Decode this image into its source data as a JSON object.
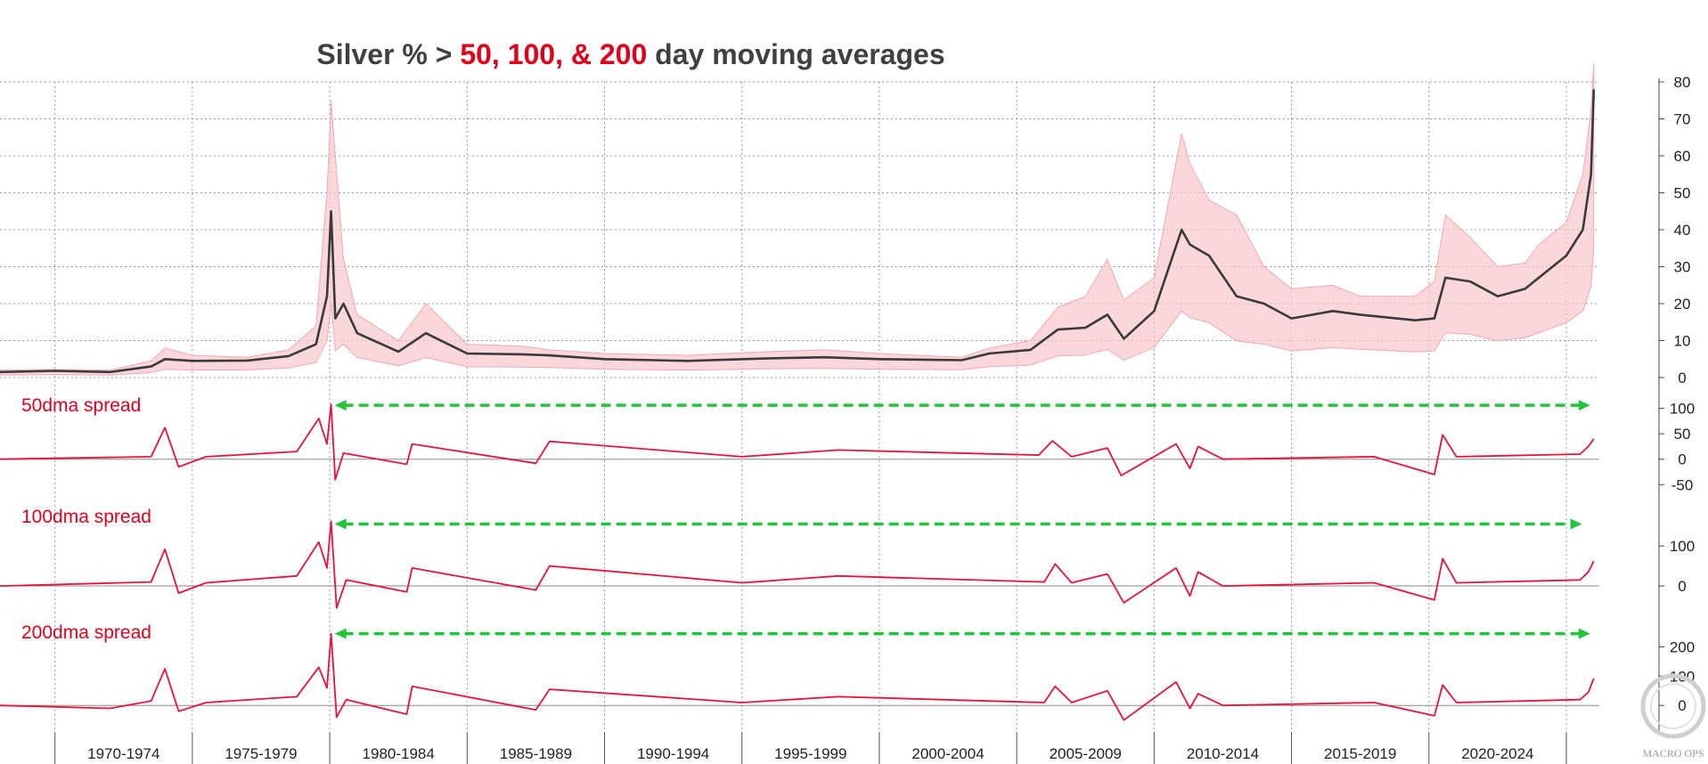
{
  "colors": {
    "accent_red": "#e0001b",
    "title_dark": "#404040",
    "price_line": "#3a3a3a",
    "band_fill": "#f8c6cb",
    "spread_line": "#e8123c",
    "arrow_green": "#22c43a",
    "grid": "#9a9a9a"
  },
  "title": {
    "prefix": "Silver % > ",
    "highlight": "50, 100, & 200",
    "suffix": " day moving averages"
  },
  "watermark": "MACRO OPS",
  "chart_data": [
    {
      "type": "line",
      "panel": "price",
      "title": "Silver % > 50, 100, & 200 day moving averages",
      "ylim": [
        0,
        80
      ],
      "y_ticks": [
        0,
        10,
        20,
        30,
        40,
        50,
        60,
        70,
        80
      ],
      "grid": true,
      "x_range": [
        1968.0,
        2026.2
      ],
      "series": [
        {
          "role": "price",
          "x": [
            1968.0,
            1970.0,
            1972.0,
            1973.5,
            1974.0,
            1975.0,
            1977.0,
            1978.5,
            1979.5,
            1979.9,
            1980.05,
            1980.2,
            1980.5,
            1981.0,
            1982.5,
            1983.5,
            1985.0,
            1987.0,
            1988.0,
            1990.0,
            1993.0,
            1996.0,
            1998.0,
            2000.0,
            2003.0,
            2004.0,
            2005.5,
            2006.5,
            2007.5,
            2008.3,
            2008.9,
            2010.0,
            2011.0,
            2011.3,
            2012.0,
            2013.0,
            2014.0,
            2015.0,
            2016.5,
            2017.5,
            2019.5,
            2020.2,
            2020.6,
            2021.5,
            2022.5,
            2023.5,
            2024.0,
            2025.0,
            2025.6,
            2025.9,
            2026.0
          ],
          "values": [
            1.5,
            1.8,
            1.5,
            3.0,
            5.0,
            4.5,
            4.6,
            5.8,
            9.0,
            22.0,
            45.0,
            16.0,
            20.0,
            12.0,
            7.0,
            12.0,
            6.5,
            6.3,
            6.0,
            5.0,
            4.5,
            5.2,
            5.5,
            5.0,
            4.7,
            6.5,
            7.5,
            13.0,
            13.5,
            17.0,
            10.5,
            18.0,
            40.0,
            36.0,
            33.0,
            22.0,
            20.0,
            16.0,
            18.0,
            17.0,
            15.5,
            16.0,
            27.0,
            26.0,
            22.0,
            24.0,
            27.0,
            33.0,
            40.0,
            55.0,
            78.0
          ]
        }
      ],
      "band_upper": [
        2.0,
        2.2,
        2.0,
        4.5,
        8.0,
        6.0,
        5.5,
        7.5,
        14.0,
        50.0,
        75.0,
        60.0,
        32.0,
        17.0,
        10.0,
        20.0,
        9.0,
        8.5,
        7.5,
        6.5,
        6.0,
        7.0,
        7.5,
        6.5,
        5.5,
        8.0,
        10.0,
        19.0,
        22.0,
        32.0,
        21.0,
        27.0,
        66.0,
        58.0,
        48.0,
        44.0,
        30.0,
        24.0,
        25.0,
        22.0,
        22.0,
        26.0,
        44.0,
        38.0,
        30.0,
        31.0,
        36.0,
        42.0,
        55.0,
        72.0,
        85.0
      ]
    },
    {
      "type": "line",
      "panel": "spread50",
      "label": "50dma spread",
      "ylim": [
        -60,
        115
      ],
      "y_ticks": [
        -50,
        0,
        50,
        100
      ],
      "series": [
        {
          "x": [
            1968.0,
            1973.5,
            1974.0,
            1974.5,
            1975.5,
            1978.8,
            1979.6,
            1979.9,
            1980.05,
            1980.2,
            1980.5,
            1982.8,
            1983.0,
            1987.5,
            1988.0,
            1995.0,
            1998.5,
            2005.8,
            2006.3,
            2007.0,
            2008.3,
            2008.8,
            2010.8,
            2011.3,
            2011.6,
            2012.5,
            2018.0,
            2020.2,
            2020.5,
            2021.0,
            2025.5,
            2025.8,
            2026.0
          ],
          "values": [
            0,
            5,
            62,
            -15,
            5,
            15,
            80,
            30,
            108,
            -40,
            12,
            -10,
            30,
            -8,
            35,
            5,
            18,
            8,
            36,
            5,
            22,
            -32,
            30,
            -18,
            25,
            0,
            5,
            -30,
            48,
            5,
            10,
            25,
            40
          ]
        }
      ],
      "arrow": {
        "from": 1980.05,
        "to": 2026.0,
        "y": 106
      }
    },
    {
      "type": "line",
      "panel": "spread100",
      "label": "100dma spread",
      "ylim": [
        -60,
        185
      ],
      "y_ticks": [
        0,
        100
      ],
      "series": [
        {
          "x": [
            1968.0,
            1973.5,
            1974.0,
            1974.5,
            1975.5,
            1978.8,
            1979.6,
            1979.9,
            1980.05,
            1980.25,
            1980.6,
            1982.8,
            1983.0,
            1987.5,
            1988.0,
            1995.0,
            1998.5,
            2006.0,
            2006.4,
            2007.0,
            2008.3,
            2008.9,
            2010.8,
            2011.3,
            2011.6,
            2012.5,
            2018.0,
            2020.2,
            2020.5,
            2021.0,
            2025.5,
            2025.8,
            2026.0
          ],
          "values": [
            0,
            10,
            92,
            -18,
            8,
            25,
            110,
            45,
            162,
            -55,
            15,
            -15,
            45,
            -10,
            50,
            8,
            25,
            10,
            55,
            8,
            30,
            -42,
            45,
            -25,
            35,
            0,
            8,
            -35,
            68,
            8,
            15,
            35,
            62
          ]
        }
      ],
      "arrow": {
        "from": 1980.05,
        "to": 2025.7,
        "y": 155
      }
    },
    {
      "type": "line",
      "panel": "spread200",
      "label": "200dma spread",
      "ylim": [
        -60,
        265
      ],
      "y_ticks": [
        0,
        100,
        200
      ],
      "series": [
        {
          "x": [
            1968.0,
            1972.0,
            1973.5,
            1974.0,
            1974.5,
            1975.5,
            1978.8,
            1979.6,
            1979.9,
            1980.05,
            1980.25,
            1980.6,
            1982.8,
            1983.0,
            1987.5,
            1988.0,
            1995.0,
            1998.5,
            2006.0,
            2006.4,
            2007.0,
            2008.3,
            2008.9,
            2010.8,
            2011.3,
            2011.6,
            2012.5,
            2018.0,
            2020.2,
            2020.5,
            2021.0,
            2025.5,
            2025.8,
            2026.0
          ],
          "values": [
            0,
            -10,
            15,
            125,
            -20,
            10,
            30,
            130,
            60,
            245,
            -40,
            20,
            -30,
            65,
            -15,
            55,
            10,
            30,
            10,
            65,
            10,
            50,
            -50,
            80,
            -10,
            40,
            0,
            10,
            -35,
            70,
            10,
            20,
            45,
            92
          ]
        }
      ],
      "arrow": {
        "from": 1980.05,
        "to": 2026.0,
        "y": 245
      }
    }
  ],
  "x_axis": {
    "boundaries": [
      1970,
      1975,
      1980,
      1985,
      1990,
      1995,
      2000,
      2005,
      2010,
      2015,
      2020,
      2025
    ],
    "labels": [
      "1970-1974",
      "1975-1979",
      "1980-1984",
      "1985-1989",
      "1990-1994",
      "1995-1999",
      "2000-2004",
      "2005-2009",
      "2010-2014",
      "2015-2019",
      "2020-2024"
    ]
  }
}
